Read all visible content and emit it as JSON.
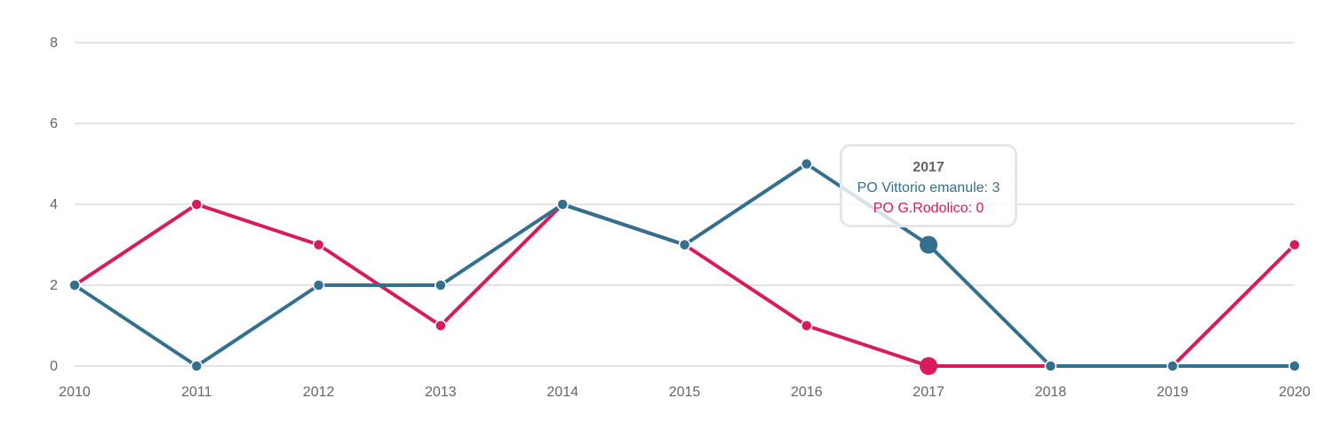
{
  "chart_data": {
    "type": "line",
    "x": [
      "2010",
      "2011",
      "2012",
      "2013",
      "2014",
      "2015",
      "2016",
      "2017",
      "2018",
      "2019",
      "2020"
    ],
    "series": [
      {
        "name": "PO G.Rodolico",
        "color": "#d81b5a",
        "values": [
          2,
          4,
          3,
          1,
          4,
          3,
          1,
          0,
          0,
          0,
          3
        ]
      },
      {
        "name": "PO Vittorio emanule",
        "color": "#336f8f",
        "values": [
          2,
          0,
          2,
          2,
          4,
          3,
          5,
          3,
          0,
          0,
          0
        ]
      }
    ],
    "yticks": [
      0,
      2,
      4,
      6,
      8
    ],
    "ylim": [
      0,
      8
    ],
    "grid": true,
    "highlight_index": 7
  },
  "tooltip": {
    "title": "2017",
    "line1": "PO Vittorio emanule: 3",
    "line2": "PO G.Rodolico: 0"
  }
}
